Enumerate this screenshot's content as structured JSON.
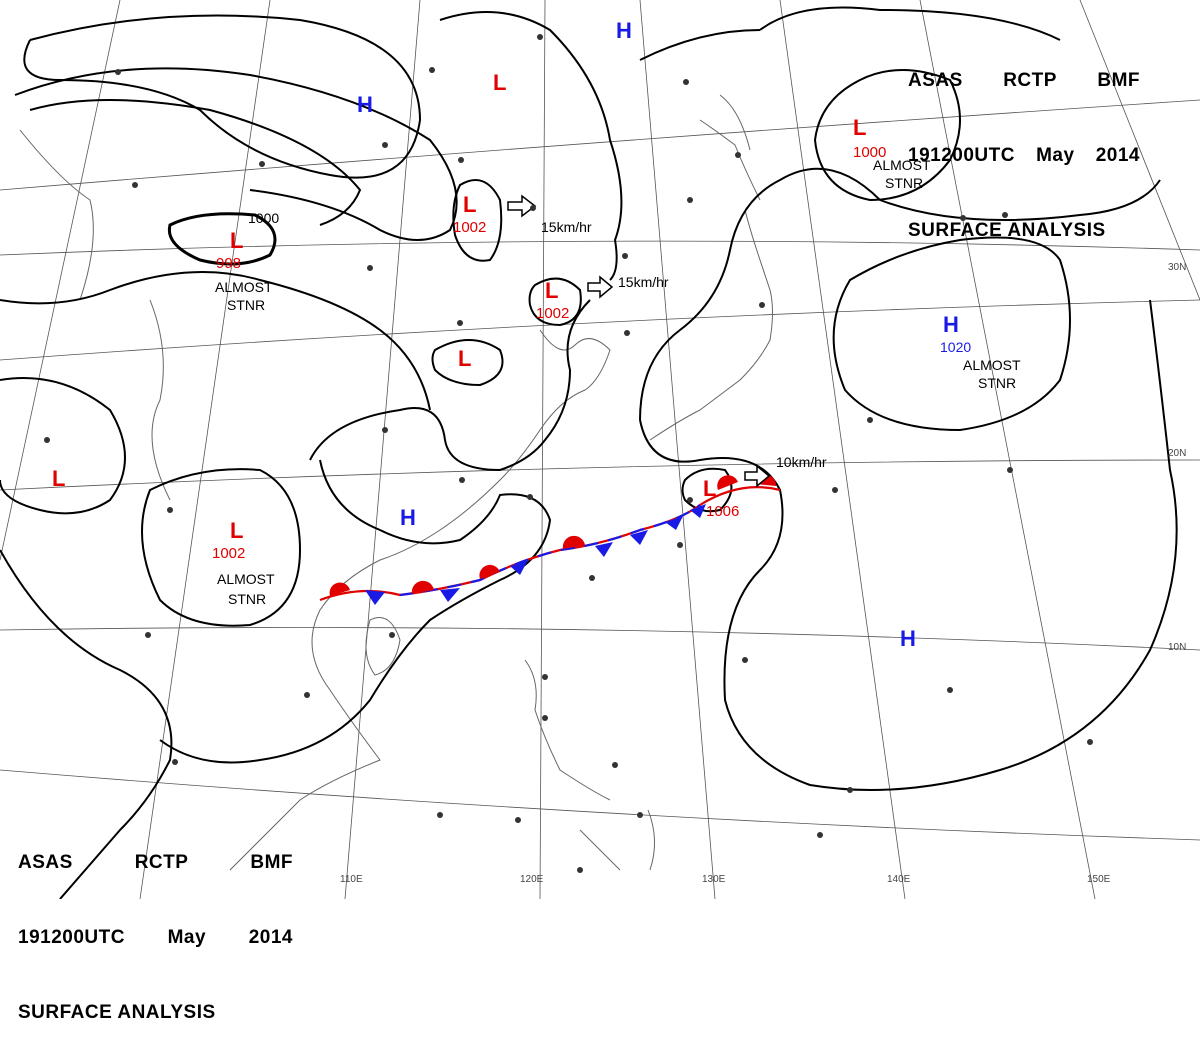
{
  "header_top": {
    "line1": [
      "ASAS",
      "RCTP",
      "BMF"
    ],
    "line2": [
      "191200UTC",
      "May",
      "2014"
    ],
    "line3": "SURFACE ANALYSIS"
  },
  "header_bottom": {
    "line1": [
      "ASAS",
      "RCTP",
      "BMF"
    ],
    "line2": [
      "191200UTC",
      "May",
      "2014"
    ],
    "line3": "SURFACE ANALYSIS"
  },
  "systems": {
    "high_nw": "H",
    "high_n": "H",
    "low_nc": "L",
    "low_1002_a": {
      "symbol": "L",
      "pressure": "1002"
    },
    "low_1002_b": {
      "symbol": "L",
      "pressure": "1002"
    },
    "low_998": {
      "symbol": "L",
      "pressure": "998"
    },
    "low_small": "L",
    "low_w": "L",
    "low_1002_sw": {
      "symbol": "L",
      "pressure": "1002"
    },
    "high_sc": "H",
    "low_1006": {
      "symbol": "L",
      "pressure": "1006"
    },
    "low_1000_ne": {
      "symbol": "L",
      "pressure": "1000"
    },
    "high_1020": {
      "symbol": "H",
      "pressure": "1020"
    },
    "high_se": "H"
  },
  "annotations": {
    "almost_stnr": "ALMOST",
    "stnr": "STNR",
    "speed_15a": "15km/hr",
    "speed_15b": "15km/hr",
    "speed_10": "10km/hr",
    "isobar_1000": "1000"
  },
  "tick_labels": {
    "lon": [
      "110E",
      "120E",
      "130E",
      "140E",
      "150E"
    ],
    "lat": [
      "30N",
      "20N",
      "10N"
    ]
  },
  "colors": {
    "low": "#e00000",
    "high": "#1a1ae6",
    "front_warm": "#e00000",
    "front_cold": "#1a1ae6",
    "isobar": "#000000"
  }
}
